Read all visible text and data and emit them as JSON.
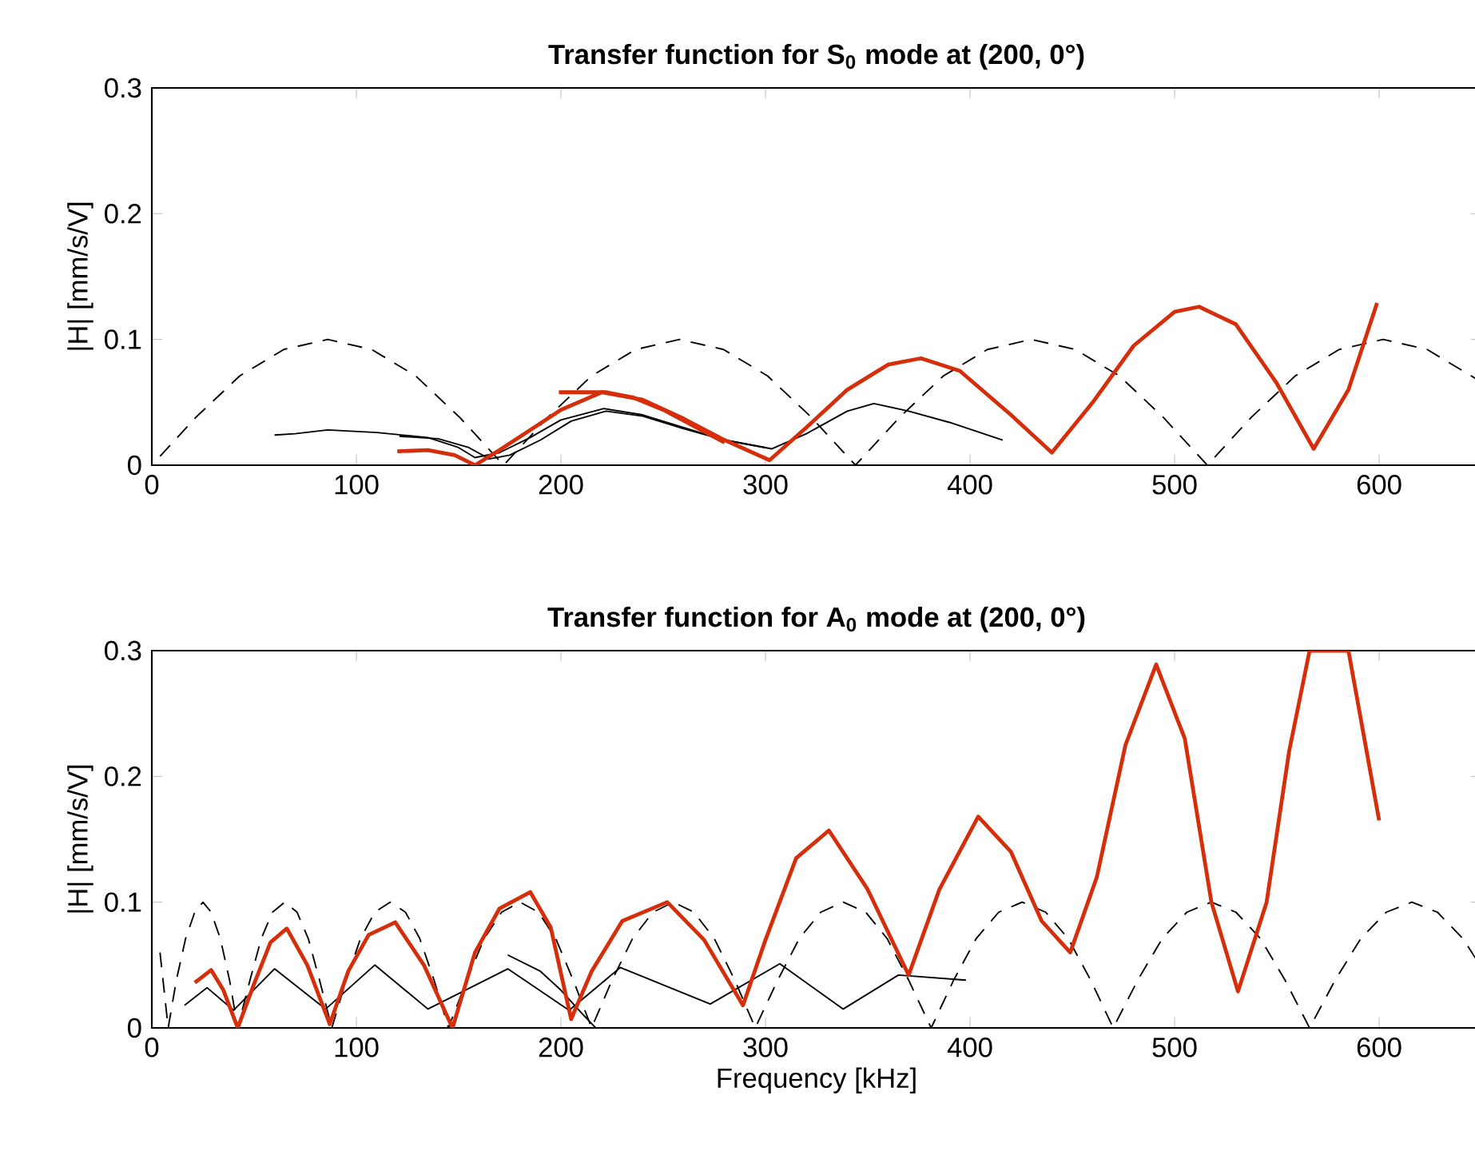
{
  "chart_data": [
    {
      "type": "line",
      "title": "Transfer function for S$_{0}$ mode at (200, 0°)",
      "ylabel": "|H| [mm/s/V]",
      "xlim": [
        0,
        650
      ],
      "ylim": [
        0,
        0.3
      ],
      "xticks": [
        0,
        100,
        200,
        300,
        400,
        500,
        600
      ],
      "yticks": [
        0,
        0.1,
        0.2,
        0.3
      ],
      "series": [
        {
          "color": "#000000",
          "line_style": "dashed",
          "x": [
            4,
            21.5,
            43,
            64.5,
            86,
            107.5,
            129,
            150.5,
            172,
            193.5,
            215,
            236.5,
            258,
            279.5,
            301,
            322.5,
            344,
            365.5,
            387,
            408.5,
            430,
            451.5,
            473,
            494.5,
            516,
            537.5,
            559,
            580.5,
            602,
            623.5,
            645,
            650
          ],
          "values": [
            0.007,
            0.038,
            0.071,
            0.092,
            0.1,
            0.092,
            0.071,
            0.038,
            0,
            0.038,
            0.071,
            0.092,
            0.1,
            0.092,
            0.071,
            0.038,
            0,
            0.038,
            0.071,
            0.092,
            0.1,
            0.092,
            0.071,
            0.038,
            0,
            0.038,
            0.071,
            0.092,
            0.1,
            0.092,
            0.071,
            0.066
          ]
        },
        {
          "color": "#000000",
          "line_style": "solid",
          "x": [
            60,
            70,
            86,
            110,
            135,
            150,
            158,
            170,
            185,
            200,
            221,
            240,
            260,
            280,
            303,
            320,
            340,
            353,
            370,
            390,
            416
          ],
          "values": [
            0.024,
            0.025,
            0.028,
            0.026,
            0.022,
            0.014,
            0.006,
            0.01,
            0.022,
            0.036,
            0.045,
            0.04,
            0.03,
            0.02,
            0.013,
            0.025,
            0.043,
            0.049,
            0.043,
            0.034,
            0.02
          ]
        },
        {
          "color": "#000000",
          "line_style": "solid",
          "x": [
            121,
            140,
            155,
            165,
            175,
            190,
            205,
            222,
            240,
            260,
            280,
            300
          ],
          "values": [
            0.023,
            0.021,
            0.014,
            0.005,
            0.008,
            0.02,
            0.035,
            0.043,
            0.039,
            0.029,
            0.02,
            0.014
          ]
        },
        {
          "color": "#d62d0a",
          "line_style": "solid",
          "x": [
            120,
            135,
            148,
            158,
            170,
            185,
            200,
            220,
            240,
            260,
            280,
            302,
            320,
            340,
            360,
            376,
            395,
            420,
            440,
            460,
            480,
            500,
            512,
            530,
            550,
            568,
            585,
            599
          ],
          "values": [
            0.011,
            0.012,
            0.008,
            0,
            0.012,
            0.028,
            0.044,
            0.058,
            0.052,
            0.037,
            0.02,
            0.004,
            0.03,
            0.06,
            0.08,
            0.085,
            0.075,
            0.04,
            0.01,
            0.05,
            0.095,
            0.122,
            0.126,
            0.112,
            0.065,
            0.013,
            0.06,
            0.129
          ]
        },
        {
          "color": "#d62d0a",
          "line_style": "solid",
          "x": [
            199,
            210,
            222,
            235,
            250,
            265,
            280
          ],
          "values": [
            0.058,
            0.058,
            0.058,
            0.054,
            0.044,
            0.031,
            0.018
          ]
        }
      ]
    },
    {
      "type": "line",
      "title": "Transfer function for A$_{0}$ mode at (200, 0°)",
      "xlabel": "Frequency [kHz]",
      "ylabel": "|H| [mm/s/V]",
      "xlim": [
        0,
        650
      ],
      "ylim": [
        0,
        0.3
      ],
      "xticks": [
        0,
        100,
        200,
        300,
        400,
        500,
        600
      ],
      "yticks": [
        0,
        0.1,
        0.2,
        0.3
      ],
      "series": [
        {
          "color": "#000000",
          "line_style": "dashed",
          "x": [
            4,
            8,
            12,
            16.5,
            21,
            25,
            29,
            33.5,
            38,
            42,
            48,
            53.5,
            59,
            65,
            71,
            76.5,
            82,
            88,
            95,
            102,
            109,
            116.5,
            124,
            131,
            138,
            145,
            154,
            162.5,
            171,
            180,
            189,
            197.5,
            206,
            215,
            225,
            235,
            245,
            255,
            265,
            275,
            285,
            295,
            306,
            316.5,
            327,
            338,
            349,
            359.5,
            370,
            381,
            392,
            403,
            414,
            425.5,
            437,
            448,
            459,
            470,
            482,
            494,
            506,
            518,
            530,
            542,
            554,
            566,
            578.5,
            591,
            603.5,
            616,
            628.5,
            641,
            650
          ],
          "values": [
            0.06,
            0,
            0.038,
            0.071,
            0.092,
            0.1,
            0.092,
            0.071,
            0.038,
            0,
            0.038,
            0.071,
            0.092,
            0.1,
            0.092,
            0.071,
            0.038,
            0,
            0.038,
            0.071,
            0.092,
            0.1,
            0.092,
            0.071,
            0.038,
            0,
            0.038,
            0.071,
            0.092,
            0.1,
            0.092,
            0.071,
            0.038,
            0,
            0.038,
            0.071,
            0.092,
            0.1,
            0.092,
            0.071,
            0.038,
            0,
            0.038,
            0.071,
            0.092,
            0.1,
            0.092,
            0.071,
            0.038,
            0,
            0.038,
            0.071,
            0.092,
            0.1,
            0.092,
            0.071,
            0.038,
            0,
            0.038,
            0.071,
            0.092,
            0.1,
            0.092,
            0.071,
            0.038,
            0,
            0.038,
            0.071,
            0.092,
            0.1,
            0.092,
            0.071,
            0.048
          ]
        },
        {
          "color": "#000000",
          "line_style": "solid",
          "x": [
            16,
            27,
            40,
            60,
            85,
            109,
            135,
            174,
            204,
            229,
            273,
            307,
            338,
            365,
            398
          ],
          "values": [
            0.018,
            0.032,
            0.014,
            0.047,
            0.015,
            0.05,
            0.015,
            0.047,
            0.014,
            0.048,
            0.019,
            0.051,
            0.015,
            0.042,
            0.038
          ]
        },
        {
          "color": "#000000",
          "line_style": "solid",
          "x": [
            174,
            190,
            200,
            210,
            217
          ],
          "values": [
            0.058,
            0.045,
            0.03,
            0.012,
            0
          ]
        },
        {
          "color": "#d62d0a",
          "line_style": "solid",
          "x": [
            21,
            29,
            35,
            42,
            50,
            58,
            66,
            76,
            87,
            96,
            106,
            119,
            133,
            147,
            158,
            170,
            185,
            195,
            205,
            215,
            230,
            252,
            270,
            289,
            300,
            315,
            331,
            350,
            370,
            385,
            404,
            420,
            435,
            449,
            462,
            476,
            491,
            505,
            518,
            531,
            545,
            556,
            566,
            585,
            600
          ],
          "values": [
            0.036,
            0.046,
            0.03,
            0,
            0.035,
            0.068,
            0.079,
            0.05,
            0.003,
            0.045,
            0.074,
            0.084,
            0.05,
            0,
            0.06,
            0.095,
            0.108,
            0.08,
            0.007,
            0.045,
            0.085,
            0.1,
            0.07,
            0.018,
            0.07,
            0.135,
            0.157,
            0.11,
            0.042,
            0.11,
            0.168,
            0.14,
            0.085,
            0.06,
            0.12,
            0.225,
            0.289,
            0.23,
            0.1,
            0.029,
            0.1,
            0.22,
            0.3,
            0.3,
            0.165
          ]
        }
      ]
    }
  ]
}
